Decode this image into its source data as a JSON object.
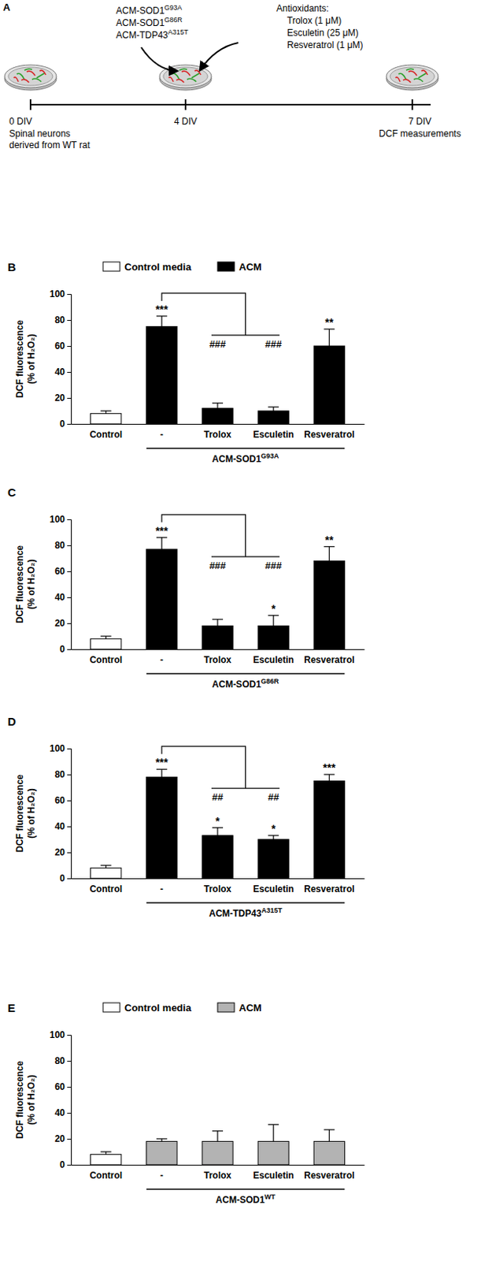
{
  "panel_a": {
    "label": "A",
    "acm_media": [
      {
        "text": "ACM-SOD1",
        "sup": "G93A"
      },
      {
        "text": "ACM-SOD1",
        "sup": "G86R"
      },
      {
        "text": "ACM-TDP43",
        "sup": "A315T"
      }
    ],
    "antioxidants_title": "Antioxidants:",
    "antioxidants": [
      "Trolox (1 μM)",
      "Esculetin (25 μM)",
      "Resveratrol (1 μM)"
    ],
    "timeline": [
      {
        "label": "0 DIV",
        "notes": [
          "Spinal neurons",
          "derived from WT rat"
        ]
      },
      {
        "label": "4 DIV",
        "notes": []
      },
      {
        "label": "7 DIV",
        "notes": [
          "DCF measurements"
        ]
      }
    ]
  },
  "chart_data": [
    {
      "type": "bar",
      "panel": "B",
      "legend": "top",
      "y_label": [
        "DCF fluorescence",
        "(% of H₂O₂)"
      ],
      "categories": [
        "Control",
        "-",
        "Trolox",
        "Esculetin",
        "Resveratrol"
      ],
      "group_label": "ACM-SOD1",
      "group_label_sup": "G93A",
      "ylim": [
        0,
        100
      ],
      "yticks": [
        0,
        20,
        40,
        60,
        80,
        100
      ],
      "series": [
        {
          "name": "Control media",
          "color": "#ffffff",
          "values": [
            8,
            null,
            null,
            null,
            null
          ],
          "errors": [
            2,
            null,
            null,
            null,
            null
          ]
        },
        {
          "name": "ACM",
          "color": "#000000",
          "values": [
            null,
            75,
            12,
            10,
            60
          ],
          "errors": [
            null,
            8,
            4,
            3,
            13
          ]
        }
      ],
      "stars": [
        null,
        "***",
        null,
        null,
        "**"
      ],
      "hashes": [
        null,
        null,
        "###",
        "###",
        null
      ]
    },
    {
      "type": "bar",
      "panel": "C",
      "y_label": [
        "DCF fluorescence",
        "(% of H₂O₂)"
      ],
      "categories": [
        "Control",
        "-",
        "Trolox",
        "Esculetin",
        "Resveratrol"
      ],
      "group_label": "ACM-SOD1",
      "group_label_sup": "G86R",
      "ylim": [
        0,
        100
      ],
      "yticks": [
        0,
        20,
        40,
        60,
        80,
        100
      ],
      "series": [
        {
          "color": "#ffffff",
          "values": [
            8,
            null,
            null,
            null,
            null
          ],
          "errors": [
            2,
            null,
            null,
            null,
            null
          ]
        },
        {
          "color": "#000000",
          "values": [
            null,
            77,
            18,
            18,
            68
          ],
          "errors": [
            null,
            9,
            5,
            8,
            11
          ]
        }
      ],
      "stars": [
        null,
        "***",
        null,
        "*",
        "**"
      ],
      "hashes": [
        null,
        null,
        "###",
        "###",
        null
      ]
    },
    {
      "type": "bar",
      "panel": "D",
      "y_label": [
        "DCF fluorescence",
        "(% of H₂O₂)"
      ],
      "categories": [
        "Control",
        "-",
        "Trolox",
        "Esculetin",
        "Resveratrol"
      ],
      "group_label": "ACM-TDP43",
      "group_label_sup": "A315T",
      "ylim": [
        0,
        100
      ],
      "yticks": [
        0,
        20,
        40,
        60,
        80,
        100
      ],
      "series": [
        {
          "color": "#ffffff",
          "values": [
            8,
            null,
            null,
            null,
            null
          ],
          "errors": [
            2,
            null,
            null,
            null,
            null
          ]
        },
        {
          "color": "#000000",
          "values": [
            null,
            78,
            33,
            30,
            75
          ],
          "errors": [
            null,
            6,
            6,
            3,
            5
          ]
        }
      ],
      "stars": [
        null,
        "***",
        "*",
        "*",
        "***"
      ],
      "hashes": [
        null,
        null,
        "##",
        "##",
        null
      ]
    },
    {
      "type": "bar",
      "panel": "E",
      "legend": "top",
      "y_label": [
        "DCF fluorescence",
        "(% of H₂O₂)"
      ],
      "categories": [
        "Control",
        "-",
        "Trolox",
        "Esculetin",
        "Resveratrol"
      ],
      "group_label": "ACM-SOD1",
      "group_label_sup": "WT",
      "ylim": [
        0,
        100
      ],
      "yticks": [
        0,
        20,
        40,
        60,
        80,
        100
      ],
      "series": [
        {
          "name": "Control media",
          "color": "#ffffff",
          "values": [
            8,
            null,
            null,
            null,
            null
          ],
          "errors": [
            2,
            null,
            null,
            null,
            null
          ]
        },
        {
          "name": "ACM",
          "color": "#b3b3b3",
          "values": [
            null,
            18,
            18,
            18,
            18
          ],
          "errors": [
            null,
            2,
            8,
            13,
            9
          ]
        }
      ]
    }
  ]
}
